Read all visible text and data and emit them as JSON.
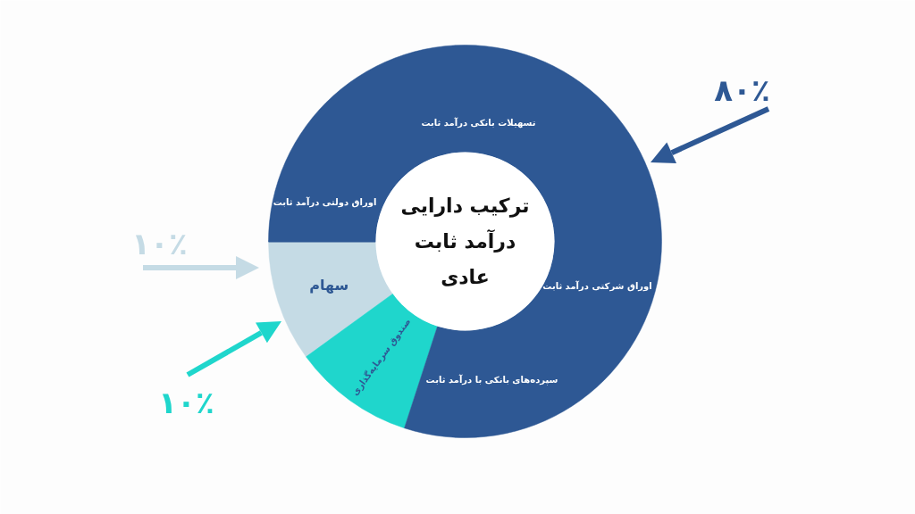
{
  "chart_data": {
    "type": "donut",
    "title": "ترکیب دارایی\nدرآمد ثابت\nعادی",
    "categories": [
      "سهام",
      "صندوق سرمایه‌گذاری",
      null
    ],
    "values": [
      10,
      10,
      80
    ],
    "colors": [
      "#c5dbe5",
      "#1fd6cc",
      "#2e5894"
    ],
    "annotations": [
      "۸۰٪",
      "۱۰٪",
      "۱۰٪",
      "تسهیلات بانکی درآمد ثابت",
      "اوراق دولتی درآمد ثابت",
      "اوراق شرکتی درآمد ثابت",
      "سپرده‌های بانکی با درآمد ثابت"
    ]
  }
}
